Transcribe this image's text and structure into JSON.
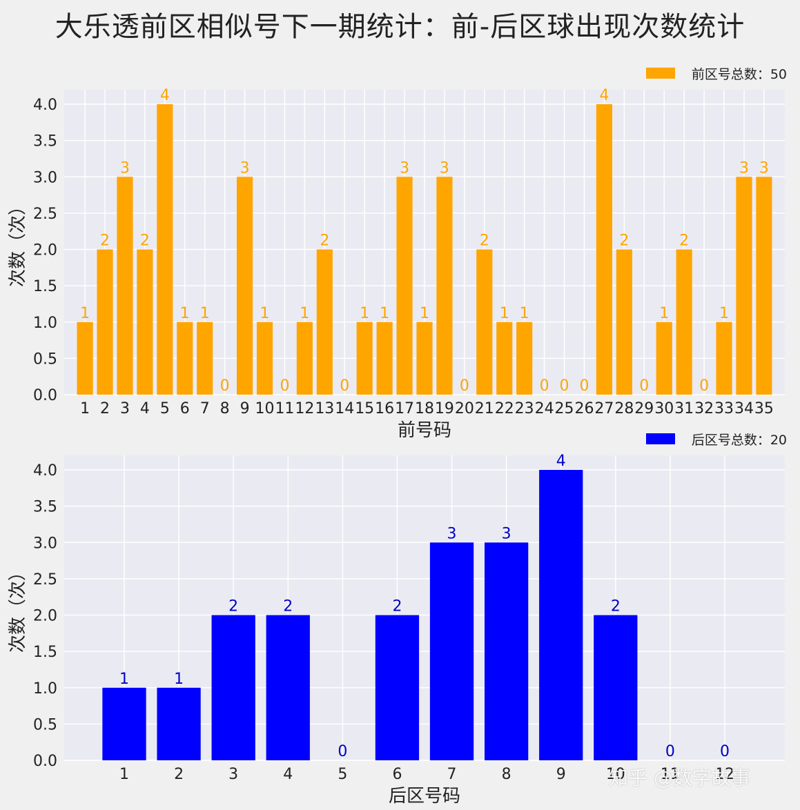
{
  "figure": {
    "title": "大乐透前区相似号下一期统计：前-后区球出现次数统计",
    "watermark": "知乎 @数字故事"
  },
  "chart_data": [
    {
      "type": "bar",
      "xlabel": "前号码",
      "ylabel": "次数（次）",
      "ylim": [
        0,
        4.2
      ],
      "yticks": [
        "0.0",
        "0.5",
        "1.0",
        "1.5",
        "2.0",
        "2.5",
        "3.0",
        "3.5",
        "4.0"
      ],
      "grid": true,
      "legend_position": "top-right",
      "categories": [
        "1",
        "2",
        "3",
        "4",
        "5",
        "6",
        "7",
        "8",
        "9",
        "10",
        "11",
        "12",
        "13",
        "14",
        "15",
        "16",
        "17",
        "18",
        "19",
        "20",
        "21",
        "22",
        "23",
        "24",
        "25",
        "26",
        "27",
        "28",
        "29",
        "30",
        "31",
        "32",
        "33",
        "34",
        "35"
      ],
      "series": [
        {
          "name": "前区号总数：50",
          "color": "#ffa500",
          "values": [
            1,
            2,
            3,
            2,
            4,
            1,
            1,
            0,
            3,
            1,
            0,
            1,
            2,
            0,
            1,
            1,
            3,
            1,
            3,
            0,
            2,
            1,
            1,
            0,
            0,
            0,
            4,
            2,
            0,
            1,
            2,
            0,
            1,
            3,
            3
          ]
        }
      ]
    },
    {
      "type": "bar",
      "xlabel": "后区号码",
      "ylabel": "次数（次）",
      "ylim": [
        0,
        4.2
      ],
      "yticks": [
        "0.0",
        "0.5",
        "1.0",
        "1.5",
        "2.0",
        "2.5",
        "3.0",
        "3.5",
        "4.0"
      ],
      "grid": true,
      "legend_position": "top-right",
      "categories": [
        "1",
        "2",
        "3",
        "4",
        "5",
        "6",
        "7",
        "8",
        "9",
        "10",
        "11",
        "12"
      ],
      "series": [
        {
          "name": "后区号总数：20",
          "color": "#0000ff",
          "label_color": "#0000c8",
          "values": [
            1,
            1,
            2,
            2,
            0,
            2,
            3,
            3,
            4,
            2,
            0,
            0
          ]
        }
      ]
    }
  ]
}
